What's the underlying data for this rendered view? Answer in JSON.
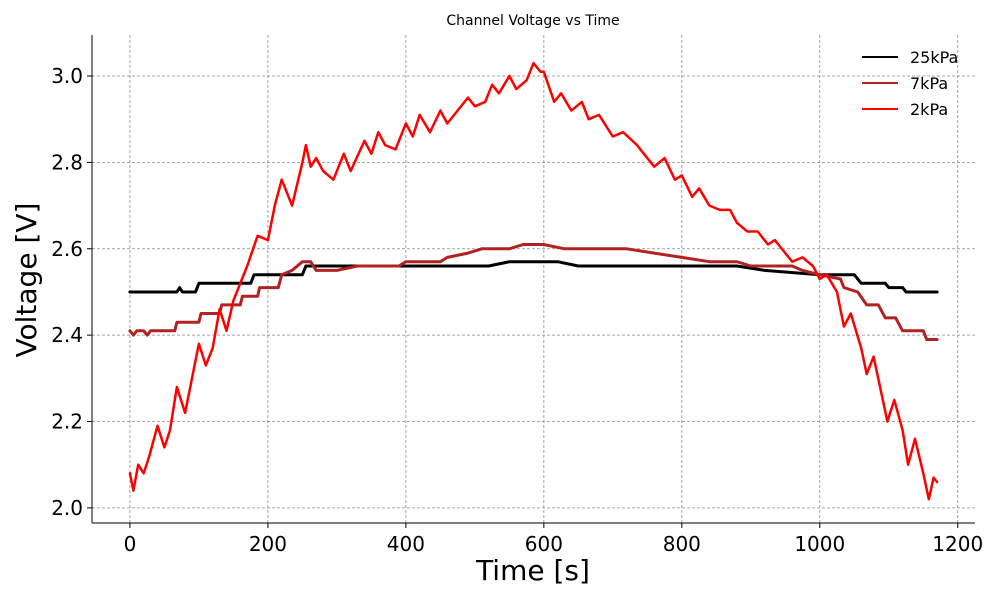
{
  "chart_data": {
    "type": "line",
    "title": "Channel Voltage vs Time",
    "xlabel": "Time [s]",
    "ylabel": "Voltage [V]",
    "xlim": [
      -55,
      1225
    ],
    "ylim": [
      1.965,
      3.095
    ],
    "xticks": [
      0,
      200,
      400,
      600,
      800,
      1000,
      1200
    ],
    "yticks": [
      2.0,
      2.2,
      2.4,
      2.6,
      2.8,
      3.0
    ],
    "xtick_labels": [
      "0",
      "200",
      "400",
      "600",
      "800",
      "1000",
      "1200"
    ],
    "ytick_labels": [
      "2.0",
      "2.2",
      "2.4",
      "2.6",
      "2.8",
      "3.0"
    ],
    "grid": true,
    "legend_position": "top-right",
    "series": [
      {
        "name": "25kPa",
        "color": "#000000",
        "stroke_width": 3,
        "points": [
          [
            0,
            2.5
          ],
          [
            68,
            2.5
          ],
          [
            72,
            2.51
          ],
          [
            76,
            2.5
          ],
          [
            95,
            2.5
          ],
          [
            100,
            2.52
          ],
          [
            175,
            2.52
          ],
          [
            180,
            2.54
          ],
          [
            250,
            2.54
          ],
          [
            255,
            2.56
          ],
          [
            400,
            2.56
          ],
          [
            420,
            2.56
          ],
          [
            520,
            2.56
          ],
          [
            550,
            2.57
          ],
          [
            620,
            2.57
          ],
          [
            650,
            2.56
          ],
          [
            880,
            2.56
          ],
          [
            920,
            2.55
          ],
          [
            1000,
            2.54
          ],
          [
            1050,
            2.54
          ],
          [
            1060,
            2.52
          ],
          [
            1095,
            2.52
          ],
          [
            1100,
            2.51
          ],
          [
            1120,
            2.51
          ],
          [
            1125,
            2.5
          ],
          [
            1170,
            2.5
          ]
        ]
      },
      {
        "name": "7kPa",
        "color": "#b22222",
        "stroke_width": 3,
        "points": [
          [
            0,
            2.41
          ],
          [
            5,
            2.4
          ],
          [
            10,
            2.41
          ],
          [
            20,
            2.41
          ],
          [
            25,
            2.4
          ],
          [
            30,
            2.41
          ],
          [
            65,
            2.41
          ],
          [
            68,
            2.43
          ],
          [
            100,
            2.43
          ],
          [
            103,
            2.45
          ],
          [
            130,
            2.45
          ],
          [
            133,
            2.47
          ],
          [
            160,
            2.47
          ],
          [
            163,
            2.49
          ],
          [
            185,
            2.49
          ],
          [
            188,
            2.51
          ],
          [
            215,
            2.51
          ],
          [
            220,
            2.54
          ],
          [
            235,
            2.55
          ],
          [
            250,
            2.57
          ],
          [
            262,
            2.57
          ],
          [
            270,
            2.55
          ],
          [
            300,
            2.55
          ],
          [
            330,
            2.56
          ],
          [
            390,
            2.56
          ],
          [
            400,
            2.57
          ],
          [
            450,
            2.57
          ],
          [
            460,
            2.58
          ],
          [
            490,
            2.59
          ],
          [
            510,
            2.6
          ],
          [
            550,
            2.6
          ],
          [
            570,
            2.61
          ],
          [
            600,
            2.61
          ],
          [
            630,
            2.6
          ],
          [
            720,
            2.6
          ],
          [
            760,
            2.59
          ],
          [
            800,
            2.58
          ],
          [
            840,
            2.57
          ],
          [
            880,
            2.57
          ],
          [
            900,
            2.56
          ],
          [
            960,
            2.56
          ],
          [
            975,
            2.55
          ],
          [
            1000,
            2.54
          ],
          [
            1030,
            2.53
          ],
          [
            1035,
            2.51
          ],
          [
            1055,
            2.5
          ],
          [
            1068,
            2.47
          ],
          [
            1085,
            2.47
          ],
          [
            1095,
            2.44
          ],
          [
            1110,
            2.44
          ],
          [
            1120,
            2.41
          ],
          [
            1150,
            2.41
          ],
          [
            1155,
            2.39
          ],
          [
            1170,
            2.39
          ]
        ]
      },
      {
        "name": "2kPa",
        "color": "#ff0000",
        "stroke_width": 2.5,
        "points": [
          [
            0,
            2.08
          ],
          [
            5,
            2.04
          ],
          [
            12,
            2.1
          ],
          [
            20,
            2.08
          ],
          [
            28,
            2.12
          ],
          [
            40,
            2.19
          ],
          [
            50,
            2.14
          ],
          [
            58,
            2.18
          ],
          [
            68,
            2.28
          ],
          [
            80,
            2.22
          ],
          [
            90,
            2.3
          ],
          [
            100,
            2.38
          ],
          [
            110,
            2.33
          ],
          [
            120,
            2.37
          ],
          [
            130,
            2.46
          ],
          [
            140,
            2.41
          ],
          [
            150,
            2.48
          ],
          [
            160,
            2.52
          ],
          [
            170,
            2.56
          ],
          [
            185,
            2.63
          ],
          [
            200,
            2.62
          ],
          [
            210,
            2.7
          ],
          [
            220,
            2.76
          ],
          [
            235,
            2.7
          ],
          [
            250,
            2.8
          ],
          [
            255,
            2.84
          ],
          [
            262,
            2.79
          ],
          [
            270,
            2.81
          ],
          [
            280,
            2.78
          ],
          [
            295,
            2.76
          ],
          [
            310,
            2.82
          ],
          [
            320,
            2.78
          ],
          [
            340,
            2.85
          ],
          [
            350,
            2.82
          ],
          [
            360,
            2.87
          ],
          [
            370,
            2.84
          ],
          [
            385,
            2.83
          ],
          [
            400,
            2.89
          ],
          [
            410,
            2.86
          ],
          [
            420,
            2.91
          ],
          [
            435,
            2.87
          ],
          [
            450,
            2.92
          ],
          [
            460,
            2.89
          ],
          [
            475,
            2.92
          ],
          [
            490,
            2.95
          ],
          [
            500,
            2.93
          ],
          [
            515,
            2.94
          ],
          [
            525,
            2.98
          ],
          [
            535,
            2.96
          ],
          [
            550,
            3.0
          ],
          [
            560,
            2.97
          ],
          [
            575,
            2.99
          ],
          [
            585,
            3.03
          ],
          [
            595,
            3.01
          ],
          [
            600,
            3.01
          ],
          [
            615,
            2.94
          ],
          [
            625,
            2.96
          ],
          [
            640,
            2.92
          ],
          [
            655,
            2.94
          ],
          [
            665,
            2.9
          ],
          [
            680,
            2.91
          ],
          [
            700,
            2.86
          ],
          [
            715,
            2.87
          ],
          [
            735,
            2.84
          ],
          [
            745,
            2.82
          ],
          [
            760,
            2.79
          ],
          [
            775,
            2.81
          ],
          [
            790,
            2.76
          ],
          [
            800,
            2.77
          ],
          [
            815,
            2.72
          ],
          [
            825,
            2.74
          ],
          [
            840,
            2.7
          ],
          [
            855,
            2.69
          ],
          [
            870,
            2.69
          ],
          [
            880,
            2.66
          ],
          [
            895,
            2.64
          ],
          [
            910,
            2.64
          ],
          [
            925,
            2.61
          ],
          [
            935,
            2.62
          ],
          [
            950,
            2.59
          ],
          [
            960,
            2.57
          ],
          [
            975,
            2.58
          ],
          [
            990,
            2.56
          ],
          [
            1000,
            2.53
          ],
          [
            1010,
            2.54
          ],
          [
            1025,
            2.5
          ],
          [
            1035,
            2.42
          ],
          [
            1045,
            2.45
          ],
          [
            1060,
            2.37
          ],
          [
            1068,
            2.31
          ],
          [
            1078,
            2.35
          ],
          [
            1090,
            2.26
          ],
          [
            1098,
            2.2
          ],
          [
            1108,
            2.25
          ],
          [
            1120,
            2.18
          ],
          [
            1128,
            2.1
          ],
          [
            1138,
            2.16
          ],
          [
            1150,
            2.08
          ],
          [
            1158,
            2.02
          ],
          [
            1165,
            2.07
          ],
          [
            1170,
            2.06
          ]
        ]
      }
    ]
  }
}
